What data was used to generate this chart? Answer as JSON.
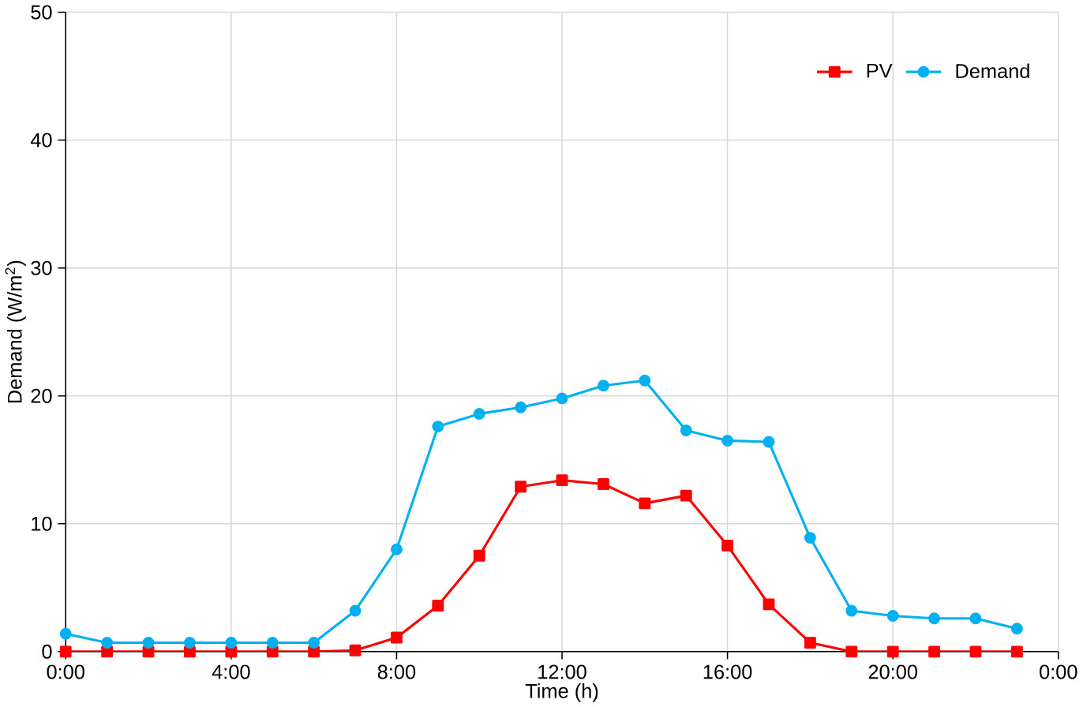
{
  "chart_data": {
    "type": "line",
    "xlabel": "Time (h)",
    "ylabel": "Demand (W/m$^{2}$)",
    "x": [
      0,
      1,
      2,
      3,
      4,
      5,
      6,
      7,
      8,
      9,
      10,
      11,
      12,
      13,
      14,
      15,
      16,
      17,
      18,
      19,
      20,
      21,
      22,
      23
    ],
    "series": [
      {
        "name": "PV",
        "color": "#ff0000",
        "marker": "square",
        "values": [
          0,
          0,
          0,
          0,
          0,
          0,
          0,
          0.1,
          1.1,
          3.6,
          7.5,
          12.9,
          13.4,
          13.1,
          11.6,
          12.2,
          8.3,
          3.7,
          0.7,
          0,
          0,
          0,
          0,
          0
        ]
      },
      {
        "name": "Demand",
        "color": "#00b0f0",
        "marker": "circle",
        "values": [
          1.4,
          0.7,
          0.7,
          0.7,
          0.7,
          0.7,
          0.7,
          3.2,
          8.0,
          17.6,
          18.6,
          19.1,
          19.8,
          20.8,
          21.2,
          17.3,
          16.5,
          16.4,
          8.9,
          3.2,
          2.8,
          2.6,
          2.6,
          1.8
        ]
      }
    ],
    "xlim": [
      0,
      24
    ],
    "ylim": [
      0,
      50
    ],
    "xticks": [
      {
        "value": 0,
        "label": "0:00"
      },
      {
        "value": 4,
        "label": "4:00"
      },
      {
        "value": 8,
        "label": "8:00"
      },
      {
        "value": 12,
        "label": "12:00"
      },
      {
        "value": 16,
        "label": "16:00"
      },
      {
        "value": 20,
        "label": "20:00"
      },
      {
        "value": 24,
        "label": "0:00"
      }
    ],
    "yticks": [
      0,
      10,
      20,
      30,
      40,
      50
    ],
    "grid": true,
    "legend": "top right",
    "line_style": "solid"
  }
}
